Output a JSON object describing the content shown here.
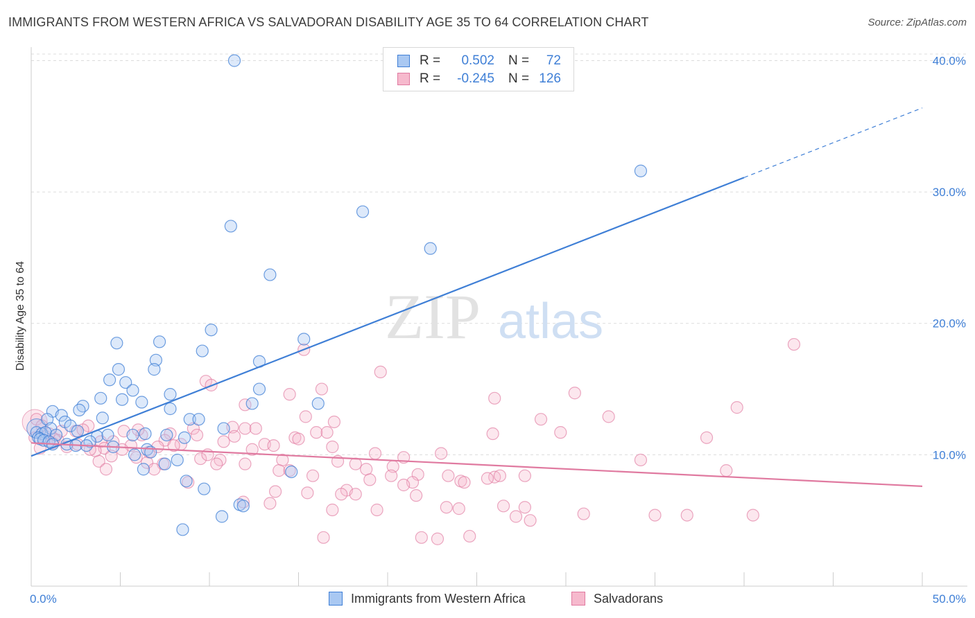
{
  "title": "IMMIGRANTS FROM WESTERN AFRICA VS SALVADORAN DISABILITY AGE 35 TO 64 CORRELATION CHART",
  "source": "Source: ZipAtlas.com",
  "watermark": {
    "part1": "ZIP",
    "part2": "atlas"
  },
  "legend": {
    "rows": [
      {
        "r_label": "R =",
        "r_value": "0.502",
        "n_label": "N =",
        "n_value": "72",
        "color": "#3f7fd6",
        "fill": "#a9c8f2"
      },
      {
        "r_label": "R =",
        "r_value": "-0.245",
        "n_label": "N =",
        "n_value": "126",
        "color": "#e07aa0",
        "fill": "#f6b9cd"
      }
    ]
  },
  "bottom_legend": [
    {
      "label": "Immigrants from Western Africa",
      "color": "#3f7fd6",
      "fill": "#a9c8f2"
    },
    {
      "label": "Salvadorans",
      "color": "#e07aa0",
      "fill": "#f6b9cd"
    }
  ],
  "chart_data": {
    "type": "scatter",
    "title": "IMMIGRANTS FROM WESTERN AFRICA VS SALVADORAN DISABILITY AGE 35 TO 64 CORRELATION CHART",
    "xlabel": "",
    "ylabel": "Disability Age 35 to 64",
    "xlim": [
      0,
      50
    ],
    "ylim": [
      0,
      40.5
    ],
    "x_ticks": [
      {
        "value": 0,
        "label": "0.0%"
      },
      {
        "value": 50,
        "label": "50.0%"
      }
    ],
    "y_ticks": [
      {
        "value": 10,
        "label": "10.0%"
      },
      {
        "value": 20,
        "label": "20.0%"
      },
      {
        "value": 30,
        "label": "30.0%"
      },
      {
        "value": 40,
        "label": "40.0%"
      }
    ],
    "grid": true,
    "legend_position": "top-center",
    "series": [
      {
        "name": "Immigrants from Western Africa",
        "color": "#3f7fd6",
        "fill": "#a9c8f2",
        "trend": {
          "x0": 0,
          "y0": 9.9,
          "x1": 40,
          "y1": 31.1,
          "dashed_to_x": 50,
          "dashed_to_y": 36.4
        },
        "points": [
          [
            11.4,
            40.0
          ],
          [
            34.2,
            31.6
          ],
          [
            18.6,
            28.5
          ],
          [
            11.2,
            27.4
          ],
          [
            22.4,
            25.7
          ],
          [
            13.4,
            23.7
          ],
          [
            10.1,
            19.5
          ],
          [
            15.3,
            18.8
          ],
          [
            4.8,
            18.5
          ],
          [
            7.2,
            18.6
          ],
          [
            9.6,
            17.9
          ],
          [
            12.8,
            17.1
          ],
          [
            7.0,
            17.2
          ],
          [
            4.9,
            16.5
          ],
          [
            6.9,
            16.5
          ],
          [
            4.4,
            15.7
          ],
          [
            5.3,
            15.5
          ],
          [
            5.7,
            14.9
          ],
          [
            12.8,
            15.0
          ],
          [
            7.8,
            14.6
          ],
          [
            3.9,
            14.3
          ],
          [
            6.2,
            14.0
          ],
          [
            5.1,
            14.2
          ],
          [
            12.4,
            13.9
          ],
          [
            16.1,
            13.9
          ],
          [
            2.9,
            13.7
          ],
          [
            2.7,
            13.4
          ],
          [
            7.8,
            13.5
          ],
          [
            1.2,
            13.3
          ],
          [
            1.7,
            13.0
          ],
          [
            0.9,
            12.7
          ],
          [
            1.9,
            12.5
          ],
          [
            4.0,
            12.8
          ],
          [
            8.9,
            12.7
          ],
          [
            2.2,
            12.2
          ],
          [
            1.1,
            12.0
          ],
          [
            9.4,
            12.7
          ],
          [
            2.6,
            11.8
          ],
          [
            0.3,
            11.7
          ],
          [
            0.6,
            11.6
          ],
          [
            0.8,
            11.7
          ],
          [
            1.4,
            11.5
          ],
          [
            0.4,
            11.3
          ],
          [
            3.7,
            11.4
          ],
          [
            0.5,
            11.2
          ],
          [
            0.7,
            11.1
          ],
          [
            1.0,
            11.0
          ],
          [
            3.3,
            11.0
          ],
          [
            10.8,
            12.0
          ],
          [
            4.3,
            11.5
          ],
          [
            5.7,
            11.5
          ],
          [
            6.4,
            11.6
          ],
          [
            7.6,
            11.5
          ],
          [
            8.6,
            11.3
          ],
          [
            1.2,
            10.8
          ],
          [
            2.0,
            10.8
          ],
          [
            2.5,
            10.7
          ],
          [
            3.1,
            10.7
          ],
          [
            4.6,
            10.6
          ],
          [
            6.5,
            10.4
          ],
          [
            6.7,
            10.2
          ],
          [
            5.8,
            10.0
          ],
          [
            8.2,
            9.6
          ],
          [
            7.5,
            9.3
          ],
          [
            6.3,
            8.9
          ],
          [
            14.6,
            8.7
          ],
          [
            8.7,
            8.0
          ],
          [
            9.7,
            7.4
          ],
          [
            11.7,
            6.2
          ],
          [
            11.9,
            6.1
          ],
          [
            10.7,
            5.3
          ],
          [
            8.5,
            4.3
          ]
        ]
      },
      {
        "name": "Salvadorans",
        "color": "#e07aa0",
        "fill": "#f6b9cd",
        "trend": {
          "x0": 0,
          "y0": 10.9,
          "x1": 50,
          "y1": 7.6
        },
        "points": [
          [
            42.8,
            18.4
          ],
          [
            15.3,
            18.0
          ],
          [
            19.6,
            16.3
          ],
          [
            9.8,
            15.6
          ],
          [
            10.1,
            15.3
          ],
          [
            16.3,
            15.0
          ],
          [
            14.5,
            14.6
          ],
          [
            30.5,
            14.7
          ],
          [
            26.0,
            14.3
          ],
          [
            12.0,
            13.8
          ],
          [
            39.6,
            13.6
          ],
          [
            32.4,
            12.9
          ],
          [
            28.6,
            12.7
          ],
          [
            0.3,
            12.7
          ],
          [
            0.6,
            12.2
          ],
          [
            3.2,
            12.2
          ],
          [
            9.1,
            12.0
          ],
          [
            12.0,
            12.0
          ],
          [
            12.6,
            12.0
          ],
          [
            5.2,
            11.8
          ],
          [
            1.7,
            11.8
          ],
          [
            2.5,
            11.8
          ],
          [
            7.8,
            11.6
          ],
          [
            16.0,
            11.7
          ],
          [
            16.6,
            11.7
          ],
          [
            25.9,
            11.6
          ],
          [
            29.7,
            11.7
          ],
          [
            6.2,
            11.5
          ],
          [
            0.8,
            11.4
          ],
          [
            14.8,
            11.3
          ],
          [
            15.0,
            11.2
          ],
          [
            37.9,
            11.3
          ],
          [
            1.5,
            11.1
          ],
          [
            3.9,
            11.0
          ],
          [
            4.6,
            11.0
          ],
          [
            7.5,
            11.1
          ],
          [
            10.8,
            11.0
          ],
          [
            1.2,
            10.9
          ],
          [
            2.6,
            10.8
          ],
          [
            5.6,
            10.7
          ],
          [
            8.4,
            10.8
          ],
          [
            13.1,
            10.8
          ],
          [
            2.0,
            10.6
          ],
          [
            4.1,
            10.5
          ],
          [
            7.1,
            10.6
          ],
          [
            16.9,
            10.6
          ],
          [
            0.5,
            10.5
          ],
          [
            5.1,
            10.4
          ],
          [
            12.4,
            10.4
          ],
          [
            6.6,
            10.2
          ],
          [
            3.6,
            10.3
          ],
          [
            19.3,
            10.1
          ],
          [
            23.0,
            10.1
          ],
          [
            20.9,
            9.8
          ],
          [
            4.5,
            9.9
          ],
          [
            5.9,
            9.8
          ],
          [
            9.5,
            9.7
          ],
          [
            10.6,
            9.6
          ],
          [
            14.1,
            9.6
          ],
          [
            17.2,
            9.5
          ],
          [
            3.8,
            9.5
          ],
          [
            6.5,
            9.4
          ],
          [
            7.4,
            9.3
          ],
          [
            10.4,
            9.3
          ],
          [
            12.0,
            9.3
          ],
          [
            20.3,
            9.1
          ],
          [
            34.2,
            9.6
          ],
          [
            39.0,
            8.8
          ],
          [
            18.8,
            8.9
          ],
          [
            4.2,
            8.9
          ],
          [
            13.9,
            8.8
          ],
          [
            6.9,
            8.9
          ],
          [
            14.5,
            8.8
          ],
          [
            15.8,
            8.4
          ],
          [
            20.2,
            8.4
          ],
          [
            21.7,
            8.5
          ],
          [
            26.0,
            8.3
          ],
          [
            26.3,
            8.4
          ],
          [
            27.7,
            8.4
          ],
          [
            23.4,
            8.4
          ],
          [
            19.0,
            8.1
          ],
          [
            24.1,
            8.0
          ],
          [
            24.3,
            7.9
          ],
          [
            8.8,
            7.9
          ],
          [
            21.4,
            7.9
          ],
          [
            20.9,
            7.7
          ],
          [
            17.7,
            7.3
          ],
          [
            13.7,
            7.2
          ],
          [
            15.5,
            7.1
          ],
          [
            18.2,
            7.0
          ],
          [
            17.4,
            7.0
          ],
          [
            21.6,
            6.9
          ],
          [
            11.9,
            6.4
          ],
          [
            13.4,
            6.3
          ],
          [
            23.3,
            6.0
          ],
          [
            26.5,
            6.1
          ],
          [
            24.0,
            5.9
          ],
          [
            27.7,
            6.0
          ],
          [
            16.9,
            5.8
          ],
          [
            19.4,
            5.8
          ],
          [
            31.0,
            5.5
          ],
          [
            36.8,
            5.4
          ],
          [
            40.5,
            5.4
          ],
          [
            35.0,
            5.4
          ],
          [
            27.2,
            5.3
          ],
          [
            28.0,
            5.0
          ],
          [
            16.4,
            3.7
          ],
          [
            21.9,
            3.7
          ],
          [
            24.6,
            3.8
          ],
          [
            22.8,
            3.6
          ],
          [
            9.3,
            11.5
          ],
          [
            11.3,
            12.1
          ],
          [
            2.9,
            11.9
          ],
          [
            8.0,
            10.7
          ],
          [
            1.3,
            11.2
          ],
          [
            15.4,
            12.9
          ],
          [
            18.2,
            9.3
          ],
          [
            11.4,
            11.4
          ],
          [
            13.6,
            10.7
          ],
          [
            6.0,
            11.9
          ],
          [
            25.6,
            8.2
          ],
          [
            3.3,
            10.4
          ],
          [
            9.9,
            10.0
          ],
          [
            17.0,
            12.5
          ],
          [
            1.0,
            11.6
          ],
          [
            0.2,
            11.3
          ]
        ]
      }
    ]
  }
}
